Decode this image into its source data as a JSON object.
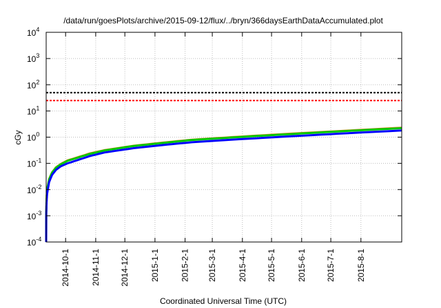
{
  "chart_data": {
    "type": "line",
    "title": "/data/run/goesPlots/archive/2015-09-12/flux/../bryn/366daysEarthDataAccumulated.plot",
    "xlabel": "Coordinated Universal Time (UTC)",
    "ylabel": "cGy",
    "x_units": "days since 2014-09-11",
    "xlim": [
      0,
      366
    ],
    "yscale": "log",
    "ylim": [
      0.0001,
      10000
    ],
    "grid": true,
    "y_ticks": [
      {
        "value": 0.0001,
        "base": "10",
        "exp": "-4"
      },
      {
        "value": 0.001,
        "base": "10",
        "exp": "-3"
      },
      {
        "value": 0.01,
        "base": "10",
        "exp": "-2"
      },
      {
        "value": 0.1,
        "base": "10",
        "exp": "-1"
      },
      {
        "value": 1,
        "base": "10",
        "exp": "0"
      },
      {
        "value": 10,
        "base": "10",
        "exp": "1"
      },
      {
        "value": 100,
        "base": "10",
        "exp": "2"
      },
      {
        "value": 1000,
        "base": "10",
        "exp": "3"
      },
      {
        "value": 10000,
        "base": "10",
        "exp": "4"
      }
    ],
    "x_ticks": [
      {
        "day": 20,
        "label": "2014-10-1"
      },
      {
        "day": 51,
        "label": "2014-11-1"
      },
      {
        "day": 81,
        "label": "2014-12-1"
      },
      {
        "day": 112,
        "label": "2015-1-1"
      },
      {
        "day": 143,
        "label": "2015-2-1"
      },
      {
        "day": 171,
        "label": "2015-3-1"
      },
      {
        "day": 202,
        "label": "2015-4-1"
      },
      {
        "day": 232,
        "label": "2015-5-1"
      },
      {
        "day": 263,
        "label": "2015-6-1"
      },
      {
        "day": 293,
        "label": "2015-7-1"
      },
      {
        "day": 324,
        "label": "2015-8-1"
      }
    ],
    "hlines": [
      {
        "value": 50,
        "color": "#000000"
      },
      {
        "value": 25,
        "color": "#ff0000"
      }
    ],
    "series": [
      {
        "name": "orange",
        "color": "#e08a1e",
        "x": [
          0,
          1,
          3,
          6,
          10,
          15,
          22,
          30,
          45,
          60,
          90,
          120,
          150,
          200,
          250,
          300,
          366
        ],
        "y": [
          0.0001,
          0.01,
          0.025,
          0.045,
          0.07,
          0.095,
          0.13,
          0.16,
          0.24,
          0.32,
          0.47,
          0.62,
          0.8,
          1.05,
          1.35,
          1.7,
          2.3
        ]
      },
      {
        "name": "green",
        "color": "#00c800",
        "x": [
          0,
          1,
          3,
          6,
          10,
          15,
          22,
          30,
          45,
          60,
          90,
          120,
          150,
          200,
          250,
          300,
          366
        ],
        "y": [
          0.0001,
          0.01,
          0.024,
          0.044,
          0.068,
          0.092,
          0.125,
          0.155,
          0.23,
          0.31,
          0.46,
          0.6,
          0.78,
          1.02,
          1.3,
          1.65,
          2.2
        ]
      },
      {
        "name": "blue",
        "color": "#0000ff",
        "x": [
          0,
          1,
          3,
          6,
          10,
          15,
          22,
          30,
          45,
          60,
          90,
          120,
          150,
          200,
          250,
          300,
          366
        ],
        "y": [
          0.0001,
          0.007,
          0.019,
          0.036,
          0.056,
          0.077,
          0.1,
          0.125,
          0.19,
          0.26,
          0.38,
          0.5,
          0.64,
          0.84,
          1.07,
          1.35,
          1.8
        ]
      }
    ]
  }
}
